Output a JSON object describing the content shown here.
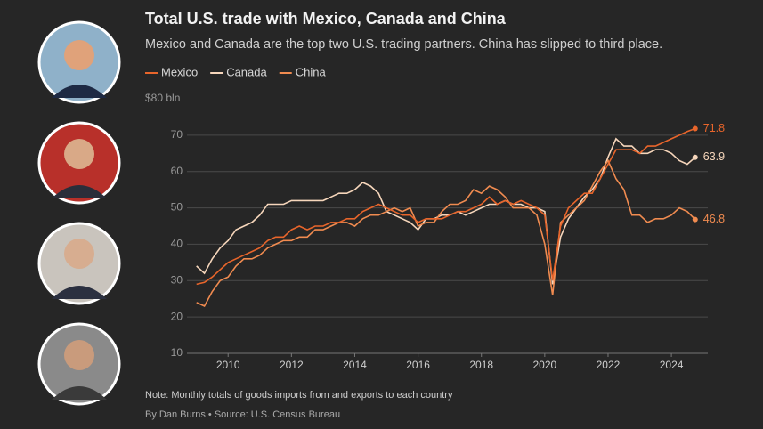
{
  "chart_data": {
    "type": "line",
    "title": "Total U.S. trade with Mexico, Canada and China",
    "subtitle": "Mexico and Canada are the top two U.S. trading partners. China has slipped to third place.",
    "note": "Note: Monthly totals of goods imports from and exports to each country",
    "byline": "By Dan Burns • Source: U.S. Census Bureau",
    "legend": "top-left",
    "grid": true,
    "x": [
      2009,
      2009.25,
      2009.5,
      2009.75,
      2010,
      2010.25,
      2010.5,
      2010.75,
      2011,
      2011.25,
      2011.5,
      2011.75,
      2012,
      2012.25,
      2012.5,
      2012.75,
      2013,
      2013.25,
      2013.5,
      2013.75,
      2014,
      2014.25,
      2014.5,
      2014.75,
      2015,
      2015.25,
      2015.5,
      2015.75,
      2016,
      2016.25,
      2016.5,
      2016.75,
      2017,
      2017.25,
      2017.5,
      2017.75,
      2018,
      2018.25,
      2018.5,
      2018.75,
      2019,
      2019.25,
      2019.5,
      2019.75,
      2020,
      2020.25,
      2020.5,
      2020.75,
      2021,
      2021.25,
      2021.5,
      2021.75,
      2022,
      2022.25,
      2022.5,
      2022.75,
      2023,
      2023.25,
      2023.5,
      2023.75,
      2024,
      2024.25,
      2024.5,
      2024.75
    ],
    "series": [
      {
        "name": "Mexico",
        "color": "#e8652b",
        "values": [
          29,
          29.5,
          31,
          33,
          35,
          36,
          37,
          38,
          39,
          41,
          42,
          42,
          44,
          45,
          44,
          45,
          45,
          46,
          46,
          47,
          47,
          49,
          50,
          51,
          50,
          49,
          48,
          48,
          46,
          47,
          47,
          47,
          48,
          49,
          49,
          50,
          51,
          53,
          51,
          52,
          51,
          52,
          51,
          50,
          48,
          30,
          45,
          50,
          52,
          54,
          54,
          58,
          62,
          66,
          66,
          66,
          65,
          67,
          67,
          68,
          69,
          70,
          71,
          71.8
        ]
      },
      {
        "name": "Canada",
        "color": "#f6d6bb",
        "values": [
          34,
          32,
          36,
          39,
          41,
          44,
          45,
          46,
          48,
          51,
          51,
          51,
          52,
          52,
          52,
          52,
          52,
          53,
          54,
          54,
          55,
          57,
          56,
          54,
          49,
          48,
          47,
          46,
          44,
          47,
          47,
          48,
          48,
          49,
          48,
          49,
          50,
          51,
          51,
          52,
          51,
          51,
          50,
          50,
          49,
          29,
          42,
          47,
          50,
          53,
          55,
          58,
          64,
          69,
          67,
          67,
          65,
          65,
          66,
          66,
          65,
          63,
          62,
          63.9
        ]
      },
      {
        "name": "China",
        "color": "#f08b50",
        "values": [
          24,
          23,
          27,
          30,
          31,
          34,
          36,
          36,
          37,
          39,
          40,
          41,
          41,
          42,
          42,
          44,
          44,
          45,
          46,
          46,
          45,
          47,
          48,
          48,
          49,
          50,
          49,
          50,
          45,
          46,
          46,
          49,
          51,
          51,
          52,
          55,
          54,
          56,
          55,
          53,
          50,
          50,
          50,
          48,
          40,
          26,
          46,
          48,
          50,
          52,
          56,
          60,
          63,
          58,
          55,
          48,
          48,
          46,
          47,
          47,
          48,
          50,
          49,
          46.8
        ]
      }
    ],
    "xlim": [
      2008.7,
      2025.15
    ],
    "xticks": [
      2010,
      2012,
      2014,
      2016,
      2018,
      2020,
      2022,
      2024
    ],
    "ylim": [
      10,
      80
    ],
    "yticks": [
      {
        "value": 80,
        "label": "$80 bln"
      },
      70,
      60,
      50,
      40,
      30,
      20,
      10
    ]
  }
}
